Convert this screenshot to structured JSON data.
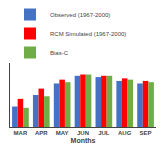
{
  "chart_data": {
    "type": "bar",
    "categories": [
      "MAR",
      "APR",
      "MAY",
      "JUN",
      "JUL",
      "AUG",
      "SEP"
    ],
    "series": [
      {
        "name": "Observed (1967-2000)",
        "color": "#4472C4",
        "values": [
          8.0,
          12.5,
          17.0,
          20.0,
          19.5,
          18.0,
          17.0
        ]
      },
      {
        "name": "RCM Simulated (1967-2000)",
        "color": "#FF0000",
        "values": [
          11.0,
          15.0,
          18.5,
          20.5,
          20.0,
          19.0,
          18.0
        ]
      },
      {
        "name": "Bias-C",
        "color": "#70AD47",
        "values": [
          7.5,
          12.0,
          17.5,
          20.5,
          20.0,
          18.5,
          17.5
        ]
      }
    ],
    "xlabel": "Months",
    "ylim": [
      0,
      25
    ],
    "tick_labels": "x",
    "legend": "top",
    "grid": false
  }
}
